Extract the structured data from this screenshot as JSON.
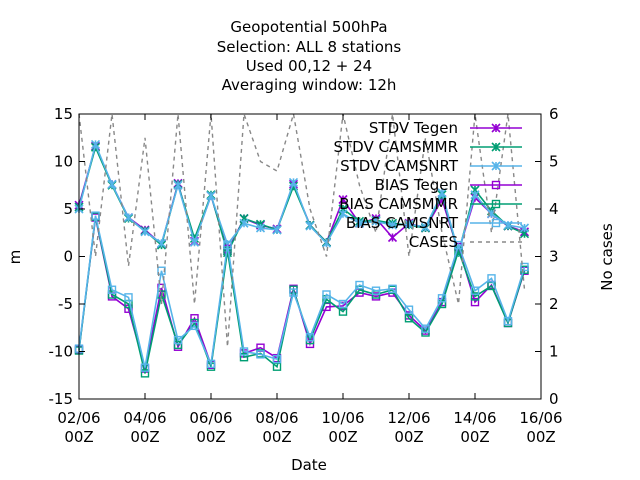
{
  "chart_data": {
    "type": "line",
    "title_lines": [
      "Geopotential 500hPa",
      "Selection: ALL      8 stations",
      "Used  00,12  + 24",
      "Averaging window: 12h"
    ],
    "xlabel": "Date",
    "ylabel": "m",
    "y2label": "No cases",
    "xlim": [
      0,
      28
    ],
    "ylim": [
      -15,
      15
    ],
    "y2lim": [
      0,
      6
    ],
    "x_ticks": [
      {
        "x": 0,
        "l1": "02/06",
        "l2": "00Z"
      },
      {
        "x": 4,
        "l1": "04/06",
        "l2": "00Z"
      },
      {
        "x": 8,
        "l1": "06/06",
        "l2": "00Z"
      },
      {
        "x": 12,
        "l1": "08/06",
        "l2": "00Z"
      },
      {
        "x": 16,
        "l1": "10/06",
        "l2": "00Z"
      },
      {
        "x": 20,
        "l1": "12/06",
        "l2": "00Z"
      },
      {
        "x": 24,
        "l1": "14/06",
        "l2": "00Z"
      },
      {
        "x": 28,
        "l1": "16/06",
        "l2": "00Z"
      }
    ],
    "y_ticks": [
      "15",
      "10",
      "5",
      "0",
      "-5",
      "-10",
      "-15"
    ],
    "y2_ticks": [
      "6",
      "5",
      "4",
      "3",
      "2",
      "1",
      "0"
    ],
    "grid": false,
    "legend_position": "top-right",
    "x": [
      0,
      1,
      2,
      3,
      4,
      5,
      6,
      7,
      8,
      9,
      10,
      11,
      12,
      13,
      14,
      15,
      16,
      17,
      18,
      19,
      20,
      21,
      22,
      23,
      24,
      25,
      26,
      27
    ],
    "series": [
      {
        "name": "STDV Tegen",
        "axis": "y",
        "color": "#9400d3",
        "marker": "x-star",
        "values": [
          5.4,
          11.6,
          7.6,
          4.1,
          2.8,
          1.3,
          7.7,
          1.6,
          6.4,
          0.6,
          4.0,
          3.3,
          2.9,
          7.6,
          3.3,
          1.5,
          6.0,
          3.5,
          4.0,
          2.0,
          3.5,
          3.0,
          6.0,
          0.5,
          6.2,
          4.5,
          3.2,
          2.6
        ]
      },
      {
        "name": "STDV CAMSMMR",
        "axis": "y",
        "color": "#009e73",
        "marker": "x-star",
        "values": [
          5.2,
          11.5,
          7.5,
          4.0,
          2.7,
          1.2,
          7.6,
          1.9,
          6.5,
          0.4,
          4.0,
          3.4,
          2.8,
          7.4,
          3.3,
          1.5,
          5.0,
          3.7,
          3.8,
          3.5,
          3.3,
          3.0,
          6.5,
          0.4,
          7.0,
          4.8,
          3.2,
          2.4
        ]
      },
      {
        "name": "STDV CAMSNRT",
        "axis": "y",
        "color": "#56b4e9",
        "marker": "x-star",
        "values": [
          5.0,
          11.8,
          7.6,
          4.1,
          2.6,
          1.4,
          7.5,
          1.5,
          6.4,
          1.3,
          3.5,
          3.0,
          2.8,
          7.8,
          3.2,
          1.4,
          4.5,
          3.5,
          3.7,
          3.3,
          3.4,
          3.1,
          6.7,
          0.5,
          6.5,
          4.5,
          3.3,
          3.0
        ]
      },
      {
        "name": "BIAS Tegen",
        "axis": "y",
        "color": "#9400d3",
        "marker": "open-square",
        "values": [
          -9.8,
          4.1,
          -4.2,
          -5.5,
          -11.8,
          -3.3,
          -9.5,
          -6.5,
          -11.4,
          0.8,
          -10.2,
          -9.6,
          -10.7,
          -3.4,
          -9.2,
          -5.3,
          -5.2,
          -3.8,
          -4.2,
          -3.8,
          -6.2,
          -7.8,
          -4.8,
          1.0,
          -4.8,
          -3.0,
          -7.0,
          -1.5
        ]
      },
      {
        "name": "BIAS CAMSMMR",
        "axis": "y",
        "color": "#009e73",
        "marker": "open-square",
        "values": [
          -9.9,
          4.2,
          -4.0,
          -5.0,
          -12.3,
          -4.0,
          -9.3,
          -7.0,
          -11.6,
          0.6,
          -10.6,
          -10.2,
          -11.6,
          -3.5,
          -8.8,
          -4.5,
          -5.8,
          -3.5,
          -4.0,
          -3.5,
          -6.5,
          -8.0,
          -5.0,
          0.6,
          -4.2,
          -3.1,
          -7.0,
          -1.4
        ]
      },
      {
        "name": "BIAS CAMSNRT",
        "axis": "y",
        "color": "#56b4e9",
        "marker": "open-square",
        "values": [
          -9.7,
          4.3,
          -3.5,
          -4.3,
          -11.7,
          -1.5,
          -8.8,
          -7.3,
          -11.3,
          1.2,
          -10.0,
          -10.3,
          -10.8,
          -3.8,
          -8.5,
          -4.0,
          -5.0,
          -3.0,
          -3.6,
          -3.4,
          -5.6,
          -7.6,
          -4.4,
          1.2,
          -3.6,
          -2.3,
          -6.8,
          -1.1
        ]
      },
      {
        "name": "CASES",
        "axis": "y2",
        "color": "#888888",
        "marker": "none",
        "dashed": true,
        "values": [
          6,
          3,
          6,
          2.8,
          5.5,
          2,
          6,
          2,
          6,
          1.1,
          6,
          5,
          4.8,
          6,
          4,
          3,
          6,
          4.5,
          3.5,
          6,
          3,
          5.5,
          3.5,
          2,
          6,
          3.5,
          6,
          2.3
        ]
      }
    ]
  }
}
